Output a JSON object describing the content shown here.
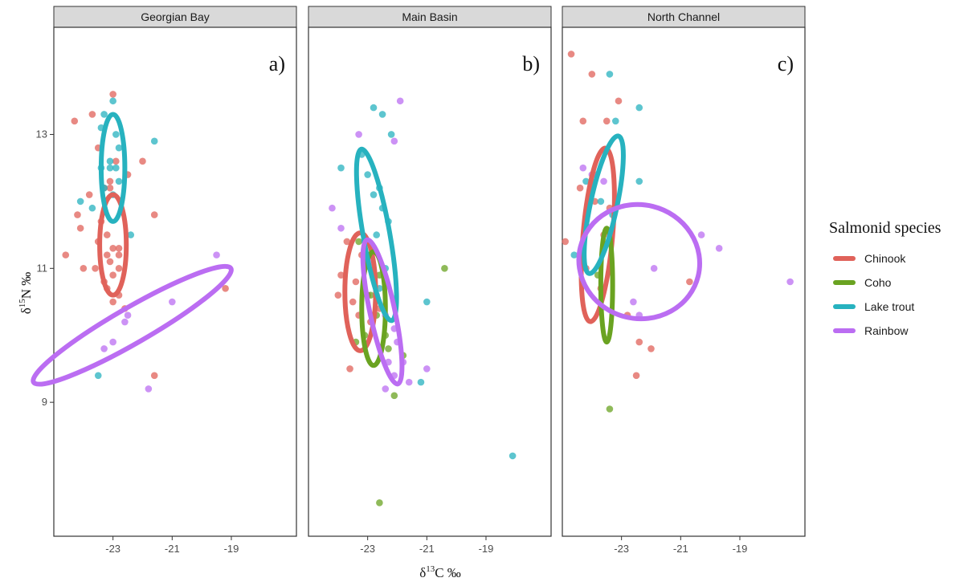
{
  "chart_data": {
    "type": "scatter",
    "title": "",
    "xlabel_prefix": "δ",
    "xlabel_sup": "13",
    "xlabel_suffix": "C ‰",
    "ylabel_prefix": "δ",
    "ylabel_sup": "15",
    "ylabel_suffix": "N ‰",
    "xlim": [
      -25.0,
      -16.8
    ],
    "ylim": [
      7.0,
      14.6
    ],
    "x_ticks": [
      -23,
      -21,
      -19
    ],
    "y_ticks": [
      9,
      11,
      13
    ],
    "x_tick_labels": [
      "-23",
      "-21",
      "-19"
    ],
    "y_tick_labels": [
      "9",
      "11",
      "13"
    ],
    "grid": false,
    "legend": {
      "title": "Salmonid species",
      "position": "right",
      "entries": [
        {
          "name": "Chinook",
          "color": "#e0625a"
        },
        {
          "name": "Coho",
          "color": "#6aa321"
        },
        {
          "name": "Lake trout",
          "color": "#27b2bf"
        },
        {
          "name": "Rainbow",
          "color": "#bb6df2"
        }
      ]
    },
    "panels": [
      {
        "strip": "Georgian Bay",
        "label": "a)",
        "series": [
          {
            "name": "Chinook",
            "points": [
              [
                -23.0,
                13.6
              ],
              [
                -24.3,
                13.2
              ],
              [
                -23.7,
                13.3
              ],
              [
                -23.5,
                12.8
              ],
              [
                -22.5,
                12.4
              ],
              [
                -22.9,
                12.6
              ],
              [
                -22.0,
                12.6
              ],
              [
                -23.1,
                12.3
              ],
              [
                -23.1,
                12.2
              ],
              [
                -23.3,
                12.2
              ],
              [
                -23.8,
                12.1
              ],
              [
                -24.2,
                11.8
              ],
              [
                -23.4,
                11.7
              ],
              [
                -24.1,
                11.6
              ],
              [
                -21.6,
                11.8
              ],
              [
                -23.2,
                11.5
              ],
              [
                -23.5,
                11.4
              ],
              [
                -23.0,
                11.3
              ],
              [
                -22.8,
                11.3
              ],
              [
                -23.2,
                11.2
              ],
              [
                -22.8,
                11.2
              ],
              [
                -24.6,
                11.2
              ],
              [
                -23.1,
                11.1
              ],
              [
                -22.8,
                11.0
              ],
              [
                -23.6,
                11.0
              ],
              [
                -24.0,
                11.0
              ],
              [
                -23.0,
                10.9
              ],
              [
                -23.3,
                10.8
              ],
              [
                -23.2,
                10.7
              ],
              [
                -22.8,
                10.6
              ],
              [
                -23.0,
                10.5
              ],
              [
                -22.6,
                10.4
              ],
              [
                -21.6,
                9.4
              ],
              [
                -19.2,
                10.7
              ]
            ]
          },
          {
            "name": "Coho",
            "points": []
          },
          {
            "name": "Lake trout",
            "points": [
              [
                -23.0,
                13.5
              ],
              [
                -23.3,
                13.3
              ],
              [
                -23.4,
                13.1
              ],
              [
                -22.9,
                13.0
              ],
              [
                -22.8,
                12.8
              ],
              [
                -23.1,
                12.6
              ],
              [
                -23.4,
                12.5
              ],
              [
                -23.1,
                12.5
              ],
              [
                -22.9,
                12.5
              ],
              [
                -22.8,
                12.3
              ],
              [
                -23.3,
                12.2
              ],
              [
                -23.0,
                12.1
              ],
              [
                -24.1,
                12.0
              ],
              [
                -23.7,
                11.9
              ],
              [
                -22.4,
                11.5
              ],
              [
                -21.6,
                12.9
              ],
              [
                -23.5,
                9.4
              ]
            ]
          },
          {
            "name": "Rainbow",
            "points": [
              [
                -23.0,
                9.9
              ],
              [
                -23.3,
                9.8
              ],
              [
                -22.6,
                10.2
              ],
              [
                -22.5,
                10.3
              ],
              [
                -21.8,
                9.2
              ],
              [
                -21.0,
                10.5
              ],
              [
                -19.5,
                11.2
              ]
            ]
          }
        ],
        "ellipses": [
          {
            "name": "Chinook",
            "cx": -23.0,
            "cy": 11.35,
            "rx": 0.45,
            "ry": 0.75,
            "angle": 0
          },
          {
            "name": "Lake trout",
            "cx": -23.0,
            "cy": 12.5,
            "rx": 0.4,
            "ry": 0.8,
            "angle": 0
          },
          {
            "name": "Rainbow",
            "cx": -22.35,
            "cy": 10.15,
            "rx": 0.6,
            "ry": 1.7,
            "angle": 60
          }
        ]
      },
      {
        "strip": "Main Basin",
        "label": "b)",
        "series": [
          {
            "name": "Chinook",
            "points": [
              [
                -23.7,
                11.4
              ],
              [
                -23.9,
                10.9
              ],
              [
                -23.2,
                11.2
              ],
              [
                -23.4,
                10.8
              ],
              [
                -23.5,
                10.5
              ],
              [
                -23.3,
                10.3
              ],
              [
                -23.0,
                10.6
              ],
              [
                -22.9,
                10.2
              ],
              [
                -22.6,
                10.4
              ],
              [
                -23.6,
                9.5
              ],
              [
                -24.0,
                10.6
              ]
            ]
          },
          {
            "name": "Coho",
            "points": [
              [
                -23.3,
                11.4
              ],
              [
                -22.6,
                10.9
              ],
              [
                -22.9,
                10.6
              ],
              [
                -22.7,
                10.3
              ],
              [
                -22.4,
                10.0
              ],
              [
                -23.1,
                10.0
              ],
              [
                -23.4,
                9.9
              ],
              [
                -22.3,
                9.8
              ],
              [
                -21.8,
                9.7
              ],
              [
                -22.1,
                9.1
              ],
              [
                -20.4,
                11.0
              ],
              [
                -22.6,
                7.5
              ]
            ]
          },
          {
            "name": "Lake trout",
            "points": [
              [
                -22.8,
                13.4
              ],
              [
                -22.5,
                13.3
              ],
              [
                -22.2,
                13.0
              ],
              [
                -23.2,
                12.7
              ],
              [
                -23.9,
                12.5
              ],
              [
                -23.0,
                12.4
              ],
              [
                -22.6,
                12.2
              ],
              [
                -22.8,
                12.1
              ],
              [
                -22.5,
                11.9
              ],
              [
                -22.3,
                11.7
              ],
              [
                -22.7,
                11.5
              ],
              [
                -23.1,
                11.4
              ],
              [
                -22.4,
                11.0
              ],
              [
                -22.6,
                10.7
              ],
              [
                -21.0,
                10.5
              ],
              [
                -21.2,
                9.3
              ],
              [
                -18.1,
                8.2
              ]
            ]
          },
          {
            "name": "Rainbow",
            "points": [
              [
                -21.9,
                13.5
              ],
              [
                -23.3,
                13.0
              ],
              [
                -22.1,
                12.9
              ],
              [
                -24.2,
                11.9
              ],
              [
                -23.9,
                11.6
              ],
              [
                -22.9,
                11.1
              ],
              [
                -22.7,
                10.6
              ],
              [
                -22.4,
                10.3
              ],
              [
                -22.1,
                10.1
              ],
              [
                -22.0,
                9.9
              ],
              [
                -22.3,
                9.6
              ],
              [
                -22.1,
                9.4
              ],
              [
                -21.6,
                9.3
              ],
              [
                -22.4,
                9.2
              ],
              [
                -21.0,
                9.5
              ],
              [
                -21.8,
                9.6
              ]
            ]
          }
        ],
        "ellipses": [
          {
            "name": "Chinook",
            "cx": -23.25,
            "cy": 10.65,
            "rx": 0.52,
            "ry": 0.88,
            "angle": 0
          },
          {
            "name": "Coho",
            "cx": -22.8,
            "cy": 10.4,
            "rx": 0.4,
            "ry": 0.85,
            "angle": 0
          },
          {
            "name": "Lake trout",
            "cx": -22.7,
            "cy": 11.5,
            "rx": 0.45,
            "ry": 1.3,
            "angle": -10
          },
          {
            "name": "Rainbow",
            "cx": -22.5,
            "cy": 10.35,
            "rx": 0.42,
            "ry": 1.1,
            "angle": -12
          }
        ]
      },
      {
        "strip": "North Channel",
        "label": "c)",
        "series": [
          {
            "name": "Chinook",
            "points": [
              [
                -24.7,
                14.2
              ],
              [
                -24.0,
                13.9
              ],
              [
                -23.1,
                13.5
              ],
              [
                -23.5,
                13.2
              ],
              [
                -24.3,
                13.2
              ],
              [
                -23.9,
                12.4
              ],
              [
                -24.0,
                12.3
              ],
              [
                -24.4,
                12.2
              ],
              [
                -23.9,
                12.0
              ],
              [
                -23.4,
                11.9
              ],
              [
                -23.6,
                11.5
              ],
              [
                -24.9,
                11.4
              ],
              [
                -24.2,
                11.0
              ],
              [
                -23.7,
                10.7
              ],
              [
                -22.8,
                10.3
              ],
              [
                -22.4,
                9.9
              ],
              [
                -22.0,
                9.8
              ],
              [
                -20.7,
                10.8
              ],
              [
                -22.5,
                9.4
              ]
            ]
          },
          {
            "name": "Coho",
            "points": [
              [
                -23.6,
                11.3
              ],
              [
                -23.8,
                10.9
              ],
              [
                -23.4,
                8.9
              ]
            ]
          },
          {
            "name": "Lake trout",
            "points": [
              [
                -23.4,
                13.9
              ],
              [
                -23.2,
                13.2
              ],
              [
                -22.4,
                13.4
              ],
              [
                -24.2,
                12.3
              ],
              [
                -23.7,
                12.0
              ],
              [
                -22.4,
                12.3
              ],
              [
                -23.3,
                11.8
              ],
              [
                -24.6,
                11.2
              ]
            ]
          },
          {
            "name": "Rainbow",
            "points": [
              [
                -24.3,
                12.5
              ],
              [
                -24.0,
                12.4
              ],
              [
                -23.6,
                12.3
              ],
              [
                -22.6,
                10.5
              ],
              [
                -22.4,
                10.3
              ],
              [
                -20.3,
                11.5
              ],
              [
                -19.7,
                11.3
              ],
              [
                -21.9,
                11.0
              ],
              [
                -17.3,
                10.8
              ]
            ]
          }
        ],
        "ellipses": [
          {
            "name": "Chinook",
            "cx": -23.8,
            "cy": 11.5,
            "rx": 0.5,
            "ry": 1.3,
            "angle": 5
          },
          {
            "name": "Coho",
            "cx": -23.5,
            "cy": 10.75,
            "rx": 0.2,
            "ry": 0.85,
            "angle": 0
          },
          {
            "name": "Lake trout",
            "cx": -23.6,
            "cy": 11.95,
            "rx": 0.45,
            "ry": 1.05,
            "angle": 12
          },
          {
            "name": "Rainbow",
            "cx": -22.4,
            "cy": 11.1,
            "rx": 2.05,
            "ry": 0.85,
            "angle": 14
          }
        ]
      }
    ]
  }
}
